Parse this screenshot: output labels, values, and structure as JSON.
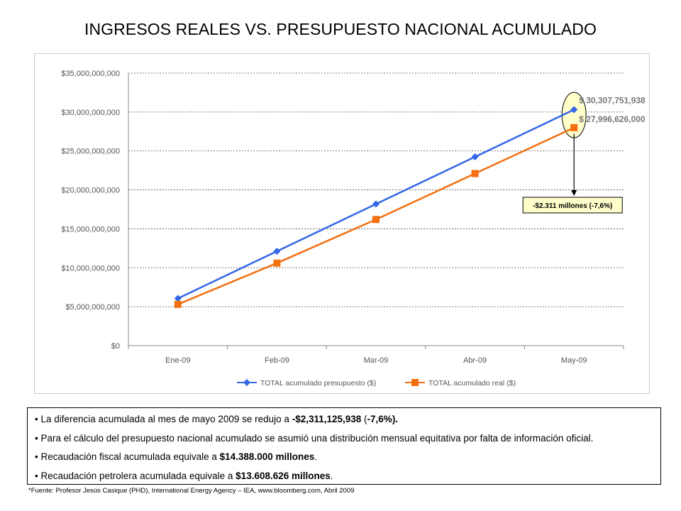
{
  "slide": {
    "title": "INGRESOS REALES VS. PRESUPUESTO NACIONAL ACUMULADO",
    "source": "*Fuente: Profesor Jesús Casique (PHD), International Energy Agency – IEA, www.bloomberg.com, Abril 2009"
  },
  "chart_data": {
    "type": "line",
    "categories": [
      "Ene-09",
      "Feb-09",
      "Mar-09",
      "Abr-09",
      "May-09"
    ],
    "yticks": [
      "$0",
      "$5,000,000,000",
      "$10,000,000,000",
      "$15,000,000,000",
      "$20,000,000,000",
      "$25,000,000,000",
      "$30,000,000,000",
      "$35,000,000,000"
    ],
    "ylim": [
      0,
      35000000000
    ],
    "grid": true,
    "legend_position": "bottom",
    "series": [
      {
        "name": "TOTAL acumulado presupuesto ($)",
        "color": "#3366e6",
        "marker": "diamond",
        "values": [
          6061550388,
          12123100775,
          18184651163,
          24246201550,
          30307751938
        ]
      },
      {
        "name": "TOTAL acumulado real ($)",
        "color": "#f36f10",
        "marker": "square",
        "values": [
          5300000000,
          10600000000,
          16200000000,
          22100000000,
          27996626000
        ]
      }
    ],
    "data_labels": {
      "presupuesto": "$ 30,307,751,938",
      "real": "$ 27,996,626,000"
    },
    "annotation": {
      "text": "-$2.311 millones (-7,6%)",
      "highlight_color": "#ffffcc"
    }
  },
  "notes": [
    {
      "pre": "• La diferencia acumulada al mes de mayo 2009 se redujo a ",
      "bold": "-$2,311,125,938",
      "post": " (",
      "bold2": "-7,6%).",
      "post2": ""
    },
    {
      "pre": "• Para el cálculo del presupuesto nacional acumulado se asumió una distribución mensual equitativa por falta de información oficial.",
      "bold": "",
      "post": "",
      "bold2": "",
      "post2": ""
    },
    {
      "pre": "• Recaudación fiscal acumulada equivale a ",
      "bold": "$14.388.000 millones",
      "post": ".",
      "bold2": "",
      "post2": ""
    },
    {
      "pre": "• Recaudación petrolera acumulada equivale a ",
      "bold": "$13.608.626 millones",
      "post": ".",
      "bold2": "",
      "post2": ""
    }
  ]
}
